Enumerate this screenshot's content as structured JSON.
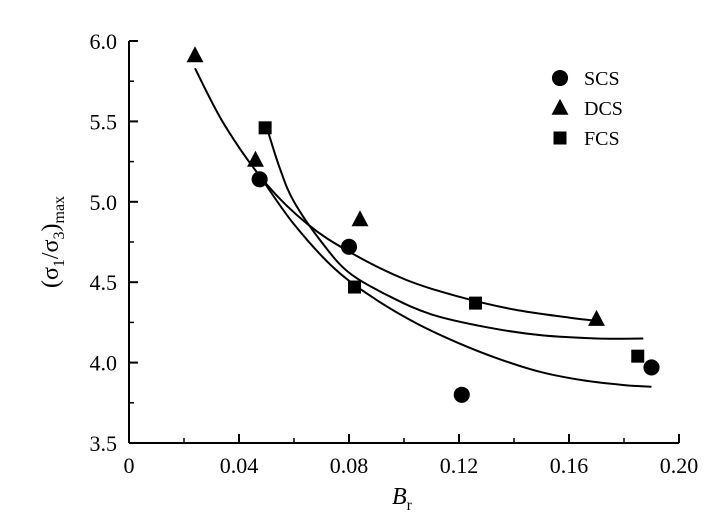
{
  "chart_data": {
    "type": "scatter",
    "xlabel": "B",
    "xlabel_sub": "r",
    "ylabel": "(σ",
    "ylabel_parts": [
      "(σ",
      "1",
      "/σ",
      "3",
      ")",
      "max"
    ],
    "xlim": [
      0,
      0.2
    ],
    "ylim": [
      3.5,
      6.0
    ],
    "x_ticks": [
      0,
      0.04,
      0.08,
      0.12,
      0.16,
      0.2
    ],
    "x_tick_labels": [
      "0",
      "0.04",
      "0.08",
      "0.12",
      "0.16",
      "0.20"
    ],
    "y_ticks": [
      3.5,
      4.0,
      4.5,
      5.0,
      5.5,
      6.0
    ],
    "y_tick_labels": [
      "3.5",
      "4.0",
      "4.5",
      "5.0",
      "5.5",
      "6.0"
    ],
    "legend_position": "top-right",
    "series": [
      {
        "name": "SCS",
        "marker": "circle",
        "points": [
          [
            0.0475,
            5.14
          ],
          [
            0.08,
            4.72
          ],
          [
            0.121,
            3.8
          ],
          [
            0.19,
            3.97
          ]
        ],
        "fit_curve": [
          [
            0.048,
            5.15
          ],
          [
            0.06,
            4.86
          ],
          [
            0.075,
            4.58
          ],
          [
            0.09,
            4.39
          ],
          [
            0.105,
            4.24
          ],
          [
            0.12,
            4.12
          ],
          [
            0.135,
            4.02
          ],
          [
            0.15,
            3.94
          ],
          [
            0.165,
            3.89
          ],
          [
            0.18,
            3.86
          ],
          [
            0.19,
            3.85
          ]
        ]
      },
      {
        "name": "DCS",
        "marker": "triangle",
        "points": [
          [
            0.024,
            5.91
          ],
          [
            0.046,
            5.26
          ],
          [
            0.084,
            4.89
          ],
          [
            0.17,
            4.27
          ]
        ],
        "fit_curve": [
          [
            0.024,
            5.83
          ],
          [
            0.035,
            5.47
          ],
          [
            0.05,
            5.11
          ],
          [
            0.065,
            4.86
          ],
          [
            0.08,
            4.69
          ],
          [
            0.1,
            4.52
          ],
          [
            0.12,
            4.41
          ],
          [
            0.14,
            4.33
          ],
          [
            0.16,
            4.28
          ],
          [
            0.17,
            4.26
          ]
        ]
      },
      {
        "name": "FCS",
        "marker": "square",
        "points": [
          [
            0.0495,
            5.46
          ],
          [
            0.082,
            4.47
          ],
          [
            0.126,
            4.37
          ],
          [
            0.185,
            4.04
          ]
        ],
        "fit_curve": [
          [
            0.0505,
            5.44
          ],
          [
            0.055,
            5.2
          ],
          [
            0.06,
            5.0
          ],
          [
            0.07,
            4.75
          ],
          [
            0.08,
            4.56
          ],
          [
            0.095,
            4.41
          ],
          [
            0.11,
            4.3
          ],
          [
            0.13,
            4.22
          ],
          [
            0.15,
            4.17
          ],
          [
            0.17,
            4.15
          ],
          [
            0.187,
            4.15
          ]
        ]
      }
    ]
  }
}
